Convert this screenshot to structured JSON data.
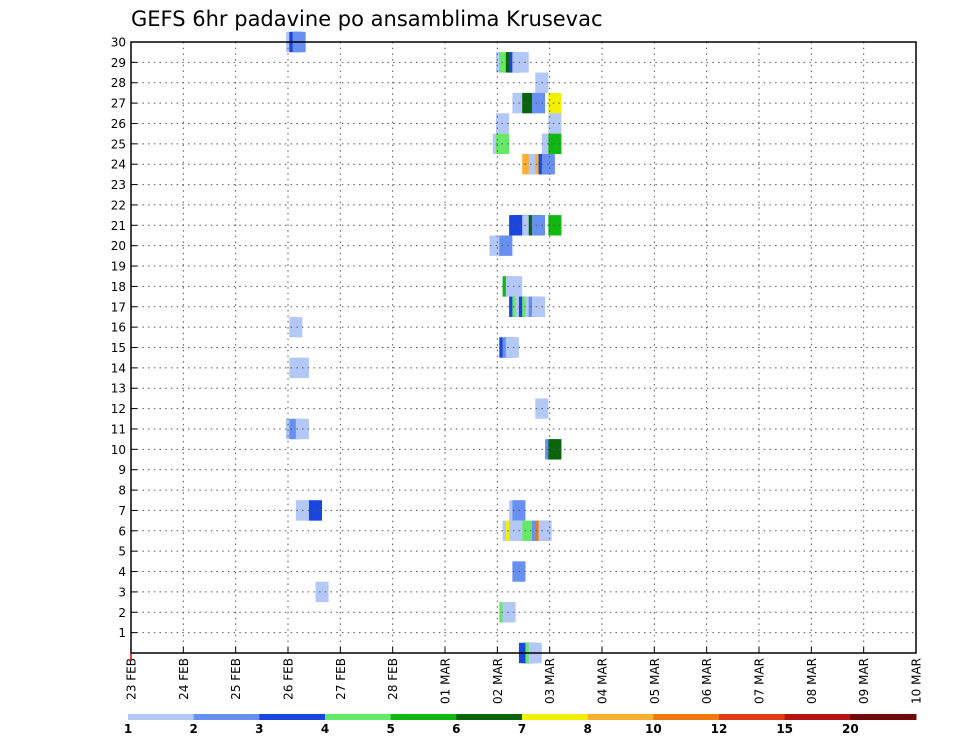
{
  "chart_data": {
    "type": "heatmap",
    "title": "GEFS 6hr padavine po ansamblima Krusevac",
    "x_tick_labels": [
      "23 FEB",
      "24 FEB",
      "25 FEB",
      "26 FEB",
      "27 FEB",
      "28 FEB",
      "01 MAR",
      "02 MAR",
      "03 MAR",
      "04 MAR",
      "05 MAR",
      "06 MAR",
      "07 MAR",
      "08 MAR",
      "09 MAR",
      "10 MAR"
    ],
    "y_tick_labels": [
      "1",
      "2",
      "3",
      "4",
      "5",
      "6",
      "7",
      "8",
      "9",
      "10",
      "11",
      "12",
      "13",
      "14",
      "15",
      "16",
      "17",
      "18",
      "19",
      "20",
      "21",
      "22",
      "23",
      "24",
      "25",
      "26",
      "27",
      "28",
      "29",
      "30"
    ],
    "x_range_days": [
      0,
      15
    ],
    "y_range_members": [
      0,
      30
    ],
    "grid": true,
    "step_hours": 6,
    "colorbar": {
      "levels": [
        "1",
        "2",
        "3",
        "4",
        "5",
        "6",
        "7",
        "8",
        "10",
        "12",
        "15",
        "20"
      ],
      "colors": [
        "#b4c8f8",
        "#6890f0",
        "#1a46dc",
        "#68e868",
        "#12b812",
        "#0a640a",
        "#f0f000",
        "#f8b030",
        "#f07810",
        "#e03c14",
        "#b41414",
        "#6e0a0a"
      ]
    },
    "cells": [
      {
        "m": 30,
        "t": [
          [
            11.85,
            1
          ],
          [
            12.1,
            3
          ],
          [
            12.35,
            2
          ]
        ]
      },
      {
        "m": 29,
        "t": [
          [
            27.9,
            1
          ],
          [
            28.15,
            4
          ],
          [
            28.65,
            6
          ],
          [
            28.9,
            3
          ],
          [
            29.15,
            1
          ],
          [
            29.4,
            1
          ]
        ]
      },
      {
        "m": 28,
        "t": [
          [
            30.9,
            1
          ]
        ]
      },
      {
        "m": 27,
        "t": [
          [
            29.15,
            1
          ],
          [
            29.9,
            6
          ],
          [
            30.65,
            2
          ],
          [
            31.9,
            7
          ]
        ]
      },
      {
        "m": 26,
        "t": [
          [
            27.9,
            1
          ],
          [
            31.9,
            1
          ]
        ]
      },
      {
        "m": 25,
        "t": [
          [
            27.65,
            1
          ],
          [
            27.9,
            4
          ],
          [
            31.4,
            1
          ],
          [
            31.65,
            1
          ],
          [
            31.9,
            5
          ]
        ]
      },
      {
        "m": 24,
        "t": [
          [
            29.9,
            8
          ],
          [
            30.4,
            1
          ],
          [
            30.65,
            1
          ],
          [
            30.9,
            8
          ],
          [
            31.15,
            3
          ],
          [
            31.4,
            2
          ]
        ]
      },
      {
        "m": 21,
        "t": [
          [
            28.9,
            3
          ],
          [
            29.15,
            3
          ],
          [
            29.4,
            3
          ],
          [
            29.65,
            3
          ],
          [
            29.9,
            1
          ],
          [
            30.4,
            6
          ],
          [
            30.65,
            2
          ],
          [
            31.9,
            5
          ]
        ]
      },
      {
        "m": 20,
        "t": [
          [
            27.4,
            1
          ],
          [
            28.15,
            2
          ]
        ]
      },
      {
        "m": 18,
        "t": [
          [
            28.4,
            5
          ],
          [
            28.65,
            1
          ],
          [
            28.9,
            1
          ]
        ]
      },
      {
        "m": 17,
        "t": [
          [
            28.9,
            3
          ],
          [
            29.15,
            4
          ],
          [
            29.4,
            1
          ],
          [
            29.65,
            3
          ],
          [
            29.9,
            4
          ],
          [
            30.15,
            1
          ],
          [
            30.4,
            2
          ],
          [
            30.65,
            1
          ]
        ]
      },
      {
        "m": 16,
        "t": [
          [
            12.1,
            1
          ]
        ]
      },
      {
        "m": 15,
        "t": [
          [
            28.15,
            3
          ],
          [
            28.4,
            2
          ],
          [
            28.65,
            1
          ]
        ]
      },
      {
        "m": 14,
        "t": [
          [
            12.1,
            1
          ],
          [
            12.6,
            1
          ]
        ]
      },
      {
        "m": 12,
        "t": [
          [
            30.9,
            1
          ]
        ]
      },
      {
        "m": 11,
        "t": [
          [
            11.85,
            1
          ],
          [
            12.1,
            2
          ],
          [
            12.6,
            1
          ]
        ]
      },
      {
        "m": 10,
        "t": [
          [
            31.65,
            2
          ],
          [
            31.9,
            6
          ]
        ]
      },
      {
        "m": 7,
        "t": [
          [
            12.6,
            1
          ],
          [
            12.85,
            1
          ],
          [
            13.35,
            1
          ],
          [
            13.6,
            3
          ],
          [
            28.9,
            1
          ],
          [
            29.15,
            2
          ]
        ]
      },
      {
        "m": 6,
        "t": [
          [
            28.4,
            1
          ],
          [
            28.65,
            7
          ],
          [
            28.9,
            1
          ],
          [
            29.9,
            4
          ],
          [
            30.65,
            2
          ],
          [
            30.9,
            9
          ],
          [
            31.15,
            1
          ]
        ]
      },
      {
        "m": 4,
        "t": [
          [
            29.15,
            2
          ]
        ]
      },
      {
        "m": 3,
        "t": [
          [
            14.1,
            1
          ]
        ]
      },
      {
        "m": 2,
        "t": [
          [
            28.15,
            4
          ],
          [
            28.4,
            1
          ]
        ]
      },
      {
        "m": 0,
        "t": [
          [
            29.65,
            3
          ],
          [
            29.9,
            3
          ],
          [
            30.15,
            4
          ],
          [
            30.4,
            1
          ]
        ]
      }
    ]
  }
}
